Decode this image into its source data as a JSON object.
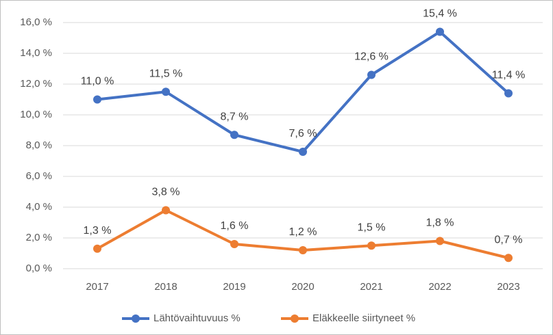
{
  "chart_data": {
    "type": "line",
    "categories": [
      "2017",
      "2018",
      "2019",
      "2020",
      "2021",
      "2022",
      "2023"
    ],
    "series": [
      {
        "name": "Lähtövaihtuvuus %",
        "color": "#4472c4",
        "values": [
          11.0,
          11.5,
          8.7,
          7.6,
          12.6,
          15.4,
          11.4
        ],
        "value_labels": [
          "11,0 %",
          "11,5 %",
          "8,7 %",
          "7,6 %",
          "12,6 %",
          "15,4 %",
          "11,4 %"
        ]
      },
      {
        "name": "Eläkkeelle siirtyneet %",
        "color": "#ed7d31",
        "values": [
          1.3,
          3.8,
          1.6,
          1.2,
          1.5,
          1.8,
          0.7
        ],
        "value_labels": [
          "1,3 %",
          "3,8 %",
          "1,6 %",
          "1,2 %",
          "1,5 %",
          "1,8 %",
          "0,7 %"
        ]
      }
    ],
    "ylim": [
      0,
      16
    ],
    "yticks": [
      {
        "value": 0,
        "label": "0,0 %"
      },
      {
        "value": 2,
        "label": "2,0 %"
      },
      {
        "value": 4,
        "label": "4,0 %"
      },
      {
        "value": 6,
        "label": "6,0 %"
      },
      {
        "value": 8,
        "label": "8,0 %"
      },
      {
        "value": 10,
        "label": "10,0 %"
      },
      {
        "value": 12,
        "label": "12,0 %"
      },
      {
        "value": 14,
        "label": "14,0 %"
      },
      {
        "value": 16,
        "label": "16,0 %"
      }
    ],
    "grid": true,
    "legend": "bottom"
  }
}
